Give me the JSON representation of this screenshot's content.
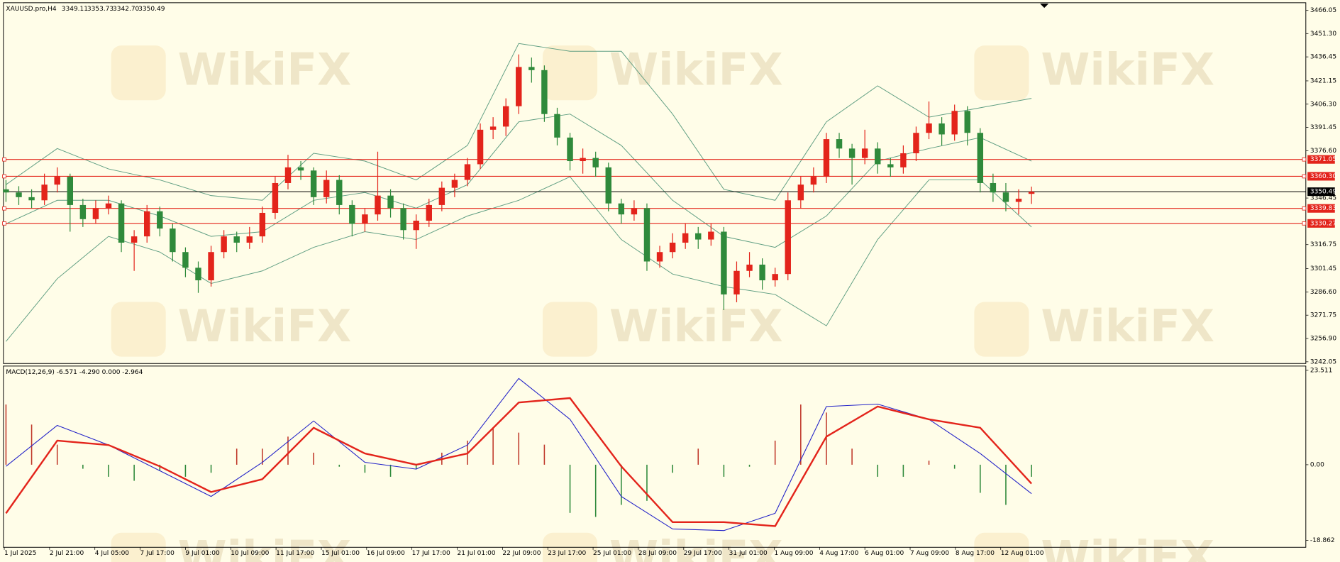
{
  "chart_data": [
    {
      "type": "candlestick",
      "title": "XAUUSD.pro,H4",
      "ohlc_header": [
        3349.11,
        3353.73,
        {
          "value": 3342.7,
          "label": "3342.70"
        },
        3350.49
      ],
      "watermark": "WikiFX",
      "up_color": "#e3241b",
      "down_color": "#2f8a3b",
      "candles": [
        [
          3352,
          3358,
          3344,
          3350
        ],
        [
          3350,
          3354,
          3342,
          3347
        ],
        [
          3347,
          3352,
          3340,
          3345
        ],
        [
          3345,
          3362,
          3342,
          3355
        ],
        [
          3355,
          3366,
          3350,
          3360
        ],
        [
          3360,
          3362,
          3325,
          3342
        ],
        [
          3342,
          3346,
          3328,
          3333
        ],
        [
          3333,
          3345,
          3330,
          3340
        ],
        [
          3340,
          3348,
          3336,
          3343
        ],
        [
          3343,
          3345,
          3312,
          3318
        ],
        [
          3318,
          3326,
          3300,
          3322
        ],
        [
          3322,
          3342,
          3318,
          3338
        ],
        [
          3338,
          3341,
          3322,
          3327
        ],
        [
          3327,
          3330,
          3306,
          3312
        ],
        [
          3312,
          3315,
          3296,
          3302
        ],
        [
          3302,
          3306,
          3286,
          3294
        ],
        [
          3294,
          3316,
          3290,
          3312
        ],
        [
          3312,
          3326,
          3308,
          3322
        ],
        [
          3322,
          3325,
          3312,
          3318
        ],
        [
          3318,
          3328,
          3314,
          3322
        ],
        [
          3322,
          3341,
          3318,
          3337
        ],
        [
          3337,
          3360,
          3333,
          3356
        ],
        [
          3356,
          3374,
          3352,
          3366
        ],
        [
          3366,
          3370,
          3358,
          3364
        ],
        [
          3364,
          3366,
          3342,
          3347
        ],
        [
          3347,
          3364,
          3343,
          3358
        ],
        [
          3358,
          3361,
          3336,
          3342
        ],
        [
          3342,
          3345,
          3322,
          3330
        ],
        [
          3330,
          3340,
          3325,
          3336
        ],
        [
          3336,
          3376,
          3332,
          3348
        ],
        [
          3348,
          3352,
          3334,
          3340
        ],
        [
          3340,
          3343,
          3320,
          3326
        ],
        [
          3326,
          3336,
          3314,
          3332
        ],
        [
          3332,
          3346,
          3328,
          3342
        ],
        [
          3342,
          3357,
          3338,
          3353
        ],
        [
          3353,
          3362,
          3347,
          3358
        ],
        [
          3358,
          3372,
          3354,
          3368
        ],
        [
          3368,
          3394,
          3365,
          3390
        ],
        [
          3390,
          3398,
          3384,
          3392
        ],
        [
          3392,
          3410,
          3386,
          3405
        ],
        [
          3405,
          3438,
          3400,
          3430
        ],
        [
          3430,
          3436,
          3420,
          3428
        ],
        [
          3428,
          3431,
          3395,
          3400
        ],
        [
          3400,
          3404,
          3380,
          3385
        ],
        [
          3385,
          3388,
          3364,
          3370
        ],
        [
          3370,
          3378,
          3362,
          3372
        ],
        [
          3372,
          3376,
          3360,
          3366
        ],
        [
          3366,
          3369,
          3338,
          3343
        ],
        [
          3343,
          3346,
          3330,
          3336
        ],
        [
          3336,
          3345,
          3332,
          3340
        ],
        [
          3340,
          3343,
          3300,
          3306
        ],
        [
          3306,
          3316,
          3302,
          3312
        ],
        [
          3312,
          3324,
          3308,
          3318
        ],
        [
          3318,
          3330,
          3314,
          3324
        ],
        [
          3324,
          3328,
          3314,
          3320
        ],
        [
          3320,
          3330,
          3316,
          3325
        ],
        [
          3325,
          3328,
          3275,
          3285
        ],
        [
          3285,
          3306,
          3280,
          3300
        ],
        [
          3300,
          3312,
          3296,
          3304
        ],
        [
          3304,
          3308,
          3288,
          3294
        ],
        [
          3294,
          3302,
          3290,
          3298
        ],
        [
          3298,
          3350,
          3294,
          3345
        ],
        [
          3345,
          3360,
          3340,
          3355
        ],
        [
          3355,
          3366,
          3350,
          3360
        ],
        [
          3360,
          3388,
          3356,
          3384
        ],
        [
          3384,
          3388,
          3372,
          3378
        ],
        [
          3378,
          3381,
          3355,
          3372
        ],
        [
          3372,
          3390,
          3368,
          3378
        ],
        [
          3378,
          3382,
          3362,
          3368
        ],
        [
          3368,
          3372,
          3360,
          3366
        ],
        [
          3366,
          3380,
          3362,
          3375
        ],
        [
          3375,
          3392,
          3370,
          3388
        ],
        [
          3388,
          3408,
          3384,
          3394
        ],
        [
          3394,
          3398,
          3380,
          3387
        ],
        [
          3387,
          3406,
          3383,
          3402
        ],
        [
          3402,
          3405,
          3380,
          3388
        ],
        [
          3388,
          3391,
          3350,
          3356
        ],
        [
          3356,
          3362,
          3344,
          3350
        ],
        [
          3350,
          3356,
          3338,
          3344
        ],
        [
          3344,
          3352,
          3336,
          3346
        ],
        [
          3349.11,
          3353.73,
          3342.7,
          3350.49
        ]
      ],
      "bands": [
        {
          "color": "#5f9e82",
          "x": [
            0,
            4,
            8,
            12,
            16,
            20,
            24,
            28,
            32,
            36,
            40,
            44,
            48,
            52,
            56,
            60,
            64,
            68,
            72,
            76,
            80
          ],
          "values": [
            3355,
            3378,
            3365,
            3358,
            3348,
            3345,
            3375,
            3370,
            3358,
            3380,
            3445,
            3440,
            3440,
            3400,
            3352,
            3345,
            3395,
            3418,
            3398,
            3404,
            3410
          ]
        },
        {
          "color": "#5f9e82",
          "x": [
            0,
            4,
            8,
            12,
            16,
            20,
            24,
            28,
            32,
            36,
            40,
            44,
            48,
            52,
            56,
            60,
            64,
            68,
            72,
            76,
            80
          ],
          "values": [
            3330,
            3345,
            3345,
            3335,
            3322,
            3325,
            3345,
            3350,
            3340,
            3355,
            3395,
            3400,
            3380,
            3345,
            3322,
            3315,
            3335,
            3370,
            3378,
            3385,
            3370
          ]
        },
        {
          "color": "#5f9e82",
          "x": [
            0,
            4,
            8,
            12,
            16,
            20,
            24,
            28,
            32,
            36,
            40,
            44,
            48,
            52,
            56,
            60,
            64,
            68,
            72,
            76,
            80
          ],
          "values": [
            3255,
            3295,
            3322,
            3312,
            3292,
            3300,
            3315,
            3325,
            3320,
            3335,
            3345,
            3360,
            3320,
            3298,
            3290,
            3285,
            3265,
            3320,
            3358,
            3358,
            3328
          ]
        }
      ],
      "levels": [
        3371.05,
        {
          "value": 3360.3,
          "label": "3360.30"
        },
        3339.83,
        3330.27
      ],
      "level_color": "#e3241b",
      "current_price": 3350.49,
      "ylim": [
        3242.05,
        3466.05
      ],
      "yticks": [
        3466.05,
        {
          "value": 3451.3,
          "label": "3451.30"
        },
        3436.45,
        3421.15,
        {
          "value": 3406.3,
          "label": "3406.30"
        },
        3391.45,
        {
          "value": 3376.6,
          "label": "3376.60"
        },
        3346.45,
        3316.75,
        3301.45,
        {
          "value": 3286.6,
          "label": "3286.60"
        },
        3271.75,
        {
          "value": 3256.9,
          "label": "3256.90"
        },
        3242.05
      ],
      "time_labels": [
        "1 Jul 2025",
        "2 Jul 21:00",
        "4 Jul 05:00",
        "7 Jul 17:00",
        "9 Jul 01:00",
        "10 Jul 09:00",
        "11 Jul 17:00",
        "15 Jul 01:00",
        "16 Jul 09:00",
        "17 Jul 17:00",
        "21 Jul 01:00",
        "22 Jul 09:00",
        "23 Jul 17:00",
        "25 Jul 01:00",
        "28 Jul 09:00",
        "29 Jul 17:00",
        "31 Jul 01:00",
        "1 Aug 09:00",
        "4 Aug 17:00",
        "6 Aug 01:00",
        "7 Aug 09:00",
        "8 Aug 17:00",
        "12 Aug 01:00"
      ]
    },
    {
      "type": "macd",
      "title": "MACD(12,26,9) -6.571 -4.290 0.000 -2.964",
      "histogram": {
        "up_color": "#c0392b",
        "down_color": "#2f8a3b",
        "x": [
          0,
          2,
          4,
          6,
          8,
          10,
          12,
          14,
          16,
          18,
          20,
          22,
          24,
          26,
          28,
          30,
          32,
          34,
          36,
          38,
          40,
          42,
          44,
          46,
          48,
          50,
          52,
          54,
          56,
          58,
          60,
          62,
          64,
          66,
          68,
          70,
          72,
          74,
          76,
          78,
          80
        ],
        "values": [
          15,
          10,
          5,
          -1,
          -3,
          -4,
          -1.5,
          -3,
          -2,
          4,
          4,
          7,
          3,
          -0.5,
          -2,
          -3,
          -1,
          3,
          6,
          9,
          8,
          5,
          -12,
          -13,
          -10,
          -9,
          -2,
          4,
          -3,
          -0.5,
          6,
          15,
          13,
          4,
          -3,
          -3,
          1,
          -1,
          -7,
          -10,
          -3
        ]
      },
      "series": [
        {
          "color": "#2323c8",
          "width": 0.9,
          "x": [
            0,
            4,
            8,
            12,
            16,
            20,
            24,
            28,
            32,
            36,
            40,
            44,
            48,
            52,
            56,
            60,
            64,
            68,
            72,
            76,
            80
          ],
          "values": [
            -0.4,
            9.8,
            4.9,
            -1.5,
            -7.9,
            0.6,
            10.9,
            0.6,
            -1.1,
            4.9,
            21.5,
            11.3,
            -7.9,
            -16,
            -16.4,
            -12.1,
            14.5,
            15.1,
            11.3,
            2.8,
            -7.2
          ]
        },
        {
          "color": "#e3241b",
          "width": 2,
          "x": [
            0,
            4,
            8,
            12,
            16,
            20,
            24,
            28,
            32,
            36,
            40,
            44,
            48,
            52,
            56,
            60,
            64,
            68,
            72,
            76,
            80
          ],
          "values": [
            -12.1,
            6,
            4.9,
            -0.4,
            -6.8,
            -3.6,
            9.2,
            2.8,
            0,
            2.8,
            15.5,
            16.6,
            -0.4,
            -14.3,
            -14.3,
            -15.3,
            7,
            14.5,
            11.3,
            9.2,
            -4.7
          ]
        }
      ],
      "ylim": [
        -18.862,
        23.511
      ],
      "yticks": [
        23.511,
        {
          "value": 0,
          "label": "0.00"
        },
        -18.862
      ]
    }
  ]
}
